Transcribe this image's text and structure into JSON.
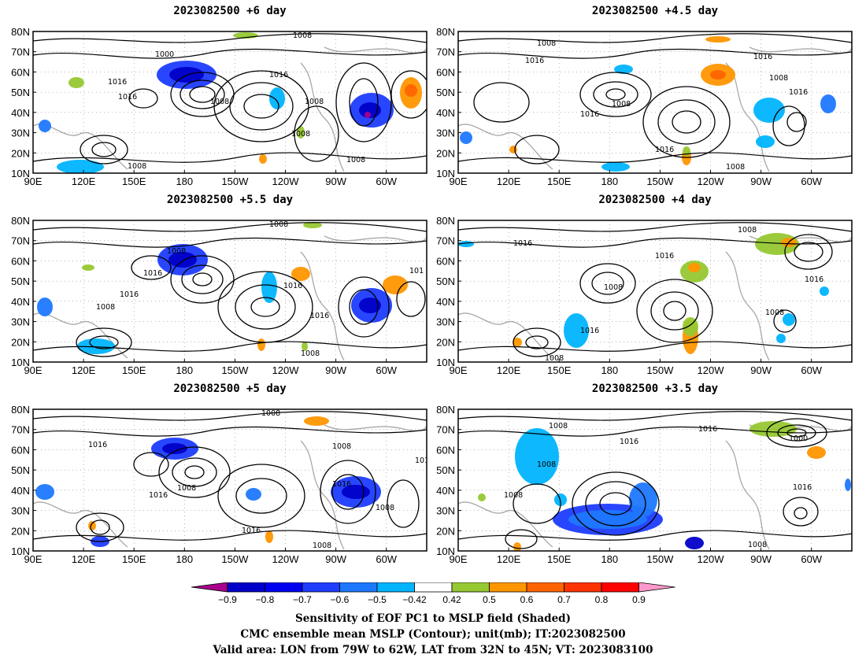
{
  "panels": [
    {
      "id": "p6",
      "title": "2023082500  +6 day"
    },
    {
      "id": "p45",
      "title": "2023082500  +4.5 day"
    },
    {
      "id": "p55",
      "title": "2023082500  +5.5 day"
    },
    {
      "id": "p4",
      "title": "2023082500  +4 day"
    },
    {
      "id": "p5",
      "title": "2023082500  +5 day"
    },
    {
      "id": "p35",
      "title": "2023082500  +3.5 day"
    }
  ],
  "axes": {
    "lat_labels": [
      "10N",
      "20N",
      "30N",
      "40N",
      "50N",
      "60N",
      "70N",
      "80N"
    ],
    "lon_labels": [
      "90E",
      "120E",
      "150E",
      "180",
      "150W",
      "120W",
      "90W",
      "60W"
    ]
  },
  "contour_labels": {
    "p6": [
      "1008",
      "1000",
      "1016",
      "1016",
      "1008",
      "1016",
      "1008",
      "1008",
      "1008",
      "1008"
    ],
    "p45": [
      "1008",
      "1016",
      "1008",
      "1016",
      "1016",
      "1016",
      "1008",
      "1016",
      "1008"
    ],
    "p55": [
      "1008",
      "1008",
      "1016",
      "1016",
      "1008",
      "1016",
      "1016",
      "1008",
      "101"
    ],
    "p4": [
      "1008",
      "1016",
      "1016",
      "1008",
      "1016",
      "1008",
      "1016",
      "1008"
    ],
    "p5": [
      "1008",
      "1016",
      "1008",
      "1016",
      "1016",
      "1008",
      "1016",
      "1008",
      "1008",
      "1016"
    ],
    "p35": [
      "1008",
      "1016",
      "1016",
      "1008",
      "1008",
      "1000",
      "1016",
      "1008"
    ]
  },
  "colorbar": {
    "ticks": [
      "−0.9",
      "−0.8",
      "−0.7",
      "−0.6",
      "−0.5",
      "−0.42",
      "0.42",
      "0.5",
      "0.6",
      "0.7",
      "0.8",
      "0.9"
    ],
    "colors": [
      "#a8008c",
      "#0000c8",
      "#0000f0",
      "#1e3cff",
      "#1e78ff",
      "#00b4ff",
      "#ffffff",
      "#96c832",
      "#ff9600",
      "#ff6400",
      "#ff3200",
      "#ff0000",
      "#ff99cc"
    ]
  },
  "captions": {
    "line1": "Sensitivity of EOF PC1 to MSLP field (Shaded)",
    "line2": "CMC ensemble mean MSLP (Contour); unit(mb); IT:2023082500",
    "line3": "Valid area: LON from 79W to 62W, LAT from 32N to 45N; VT: 2023083100"
  }
}
